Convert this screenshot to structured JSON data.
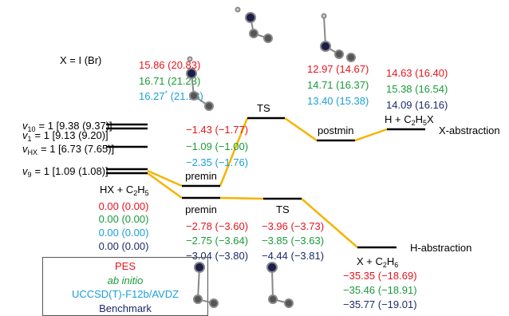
{
  "note": "X = I (Br)",
  "vibrational_levels": [
    {
      "symbol": "v",
      "mode": "10",
      "text": "= 1 [9.38 (9.37)]"
    },
    {
      "symbol": "v",
      "mode": "1",
      "text": "= 1 [9.13 (9.20)]"
    },
    {
      "symbol": "v",
      "mode": "HX",
      "text": "= 1 [6.73 (7.65)]"
    },
    {
      "symbol": "v",
      "mode": "9",
      "text": "= 1 [1.09 (1.08)]"
    }
  ],
  "reactant": {
    "label": [
      "HX + C",
      "2",
      "H",
      "5"
    ],
    "energies": [
      "0.00 (0.00)",
      "0.00 (0.00)",
      "0.00 (0.00)",
      "0.00 (0.00)"
    ]
  },
  "x_abstraction": {
    "title": "X-abstraction",
    "premin": {
      "label": "premin",
      "energies": [
        "−1.43 (−1.77)",
        "−1.09 (−1.00)",
        "−2.35 (−1.76)"
      ]
    },
    "ts": {
      "label": "TS",
      "energies": [
        "15.86 (20.83)",
        "16.71 (21.23)",
        [
          "16.27",
          "*",
          " (21.18)"
        ]
      ]
    },
    "postmin": {
      "label": "postmin",
      "energies": [
        "12.97 (14.67)",
        "14.71 (16.37)",
        "13.40 (15.38)"
      ]
    },
    "products": {
      "label": [
        "H + C",
        "2",
        "H",
        "5",
        "X"
      ],
      "energies": [
        "14.63 (16.40)",
        "15.38 (16.54)",
        "14.09 (16.16)"
      ]
    }
  },
  "h_abstraction": {
    "title": "H-abstraction",
    "premin": {
      "label": "premin",
      "energies": [
        "−2.78 (−3.60)",
        "−2.75 (−3.64)",
        "−3.04 (−3.80)"
      ]
    },
    "ts": {
      "label": "TS",
      "energies": [
        "−3.96 (−3.73)",
        "−3.85 (−3.63)",
        "−4.44 (−3.81)"
      ]
    },
    "products": {
      "label": [
        "X + C",
        "2",
        "H",
        "6"
      ],
      "energies": [
        "−35.35 (−18.69)",
        "−35.46 (−18.91)",
        "−35.77 (−19.01)"
      ]
    }
  },
  "legend": [
    "PES",
    "ab initio",
    "UCCSD(T)-F12b/AVDZ",
    "Benchmark"
  ]
}
